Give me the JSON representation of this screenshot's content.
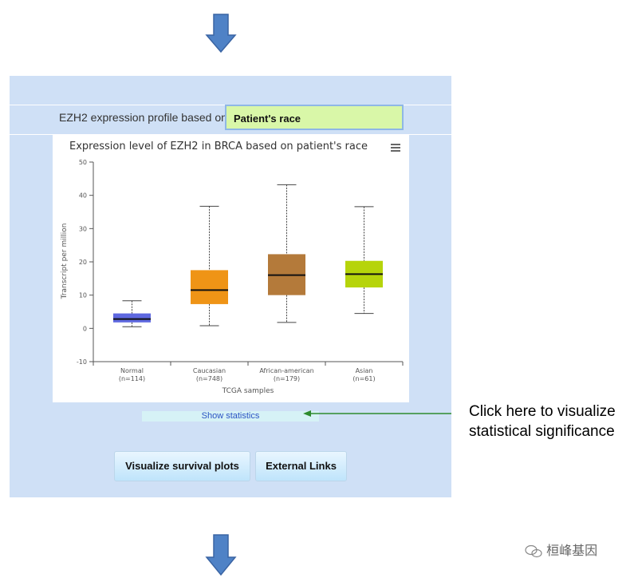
{
  "profile": {
    "label": "EZH2 expression profile based on",
    "selected": "Patient's race"
  },
  "chart_data": {
    "type": "box",
    "title": "Expression level of EZH2 in BRCA based on patient's race",
    "xlabel": "TCGA samples",
    "ylabel": "Transcript per million",
    "ylim": [
      -10,
      50
    ],
    "yticks": [
      -10,
      0,
      10,
      20,
      30,
      40,
      50
    ],
    "grid": false,
    "categories": [
      "Normal",
      "Caucasian",
      "African-american",
      "Asian"
    ],
    "counts": [
      "(n=114)",
      "(n=748)",
      "(n=179)",
      "(n=61)"
    ],
    "boxes": [
      {
        "min": 0.5,
        "q1": 1.8,
        "median": 2.8,
        "q3": 4.5,
        "max": 8.3
      },
      {
        "min": 0.8,
        "q1": 7.3,
        "median": 11.5,
        "q3": 17.5,
        "max": 36.7
      },
      {
        "min": 1.8,
        "q1": 10.0,
        "median": 16.0,
        "q3": 22.3,
        "max": 43.2
      },
      {
        "min": 4.5,
        "q1": 12.3,
        "median": 16.3,
        "q3": 20.3,
        "max": 36.6
      }
    ],
    "colors": [
      "#5e68e0",
      "#ef9416",
      "#b47a3a",
      "#b6d40b"
    ]
  },
  "stats_link": "Show statistics",
  "buttons": {
    "survival": "Visualize survival plots",
    "external": "External Links"
  },
  "annotation": {
    "line1": "Click here to visualize",
    "line2": "statistical significance"
  },
  "watermark": "桓峰基因",
  "colors": {
    "panel": "#cfe0f6",
    "select_bg": "#d9f7a8",
    "arrow": "#4c7ec2",
    "annotation_line": "#2e8b2e"
  }
}
